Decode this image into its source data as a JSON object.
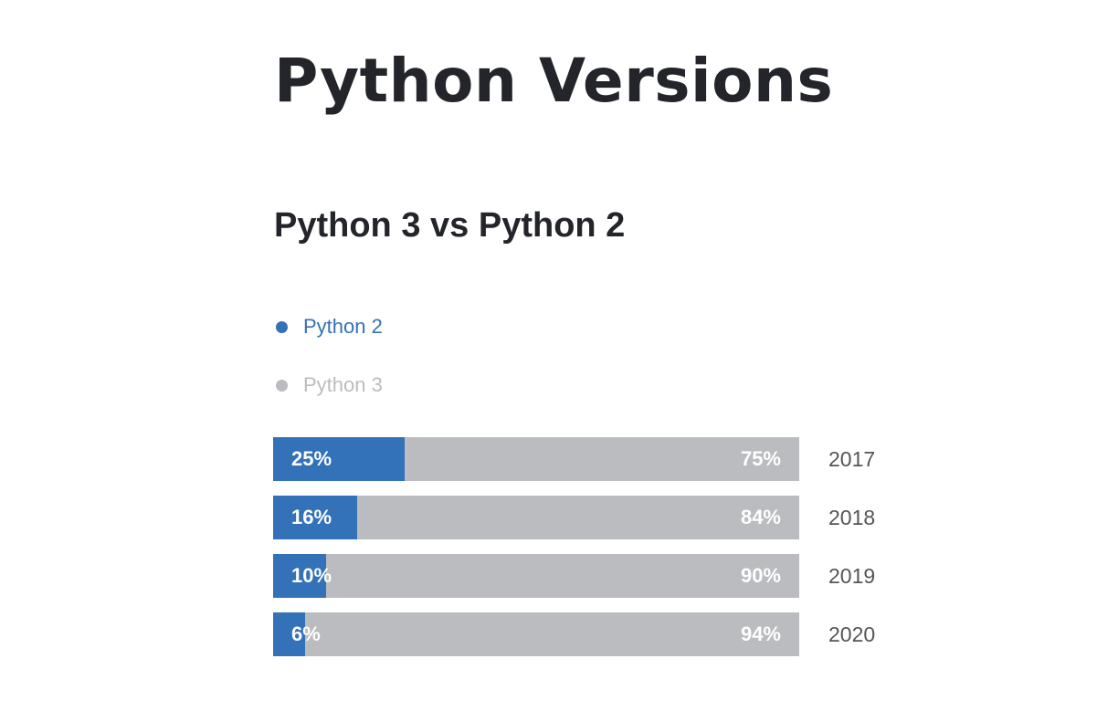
{
  "page": {
    "title": "Python Versions"
  },
  "chart_data": {
    "type": "bar",
    "orientation": "horizontal",
    "stacked": true,
    "title": "Python 3 vs Python 2",
    "legend_placement": "top-left",
    "categories": [
      "2017",
      "2018",
      "2019",
      "2020"
    ],
    "series": [
      {
        "name": "Python 2",
        "color": "#3371b9",
        "values": [
          25,
          16,
          10,
          6
        ],
        "labels": [
          "25%",
          "16%",
          "10%",
          "6%"
        ]
      },
      {
        "name": "Python 3",
        "color": "#bbbcbf",
        "values": [
          75,
          84,
          90,
          94
        ],
        "labels": [
          "75%",
          "84%",
          "90%",
          "94%"
        ]
      }
    ],
    "unit": "%",
    "xlim": [
      0,
      100
    ],
    "grid": false
  }
}
